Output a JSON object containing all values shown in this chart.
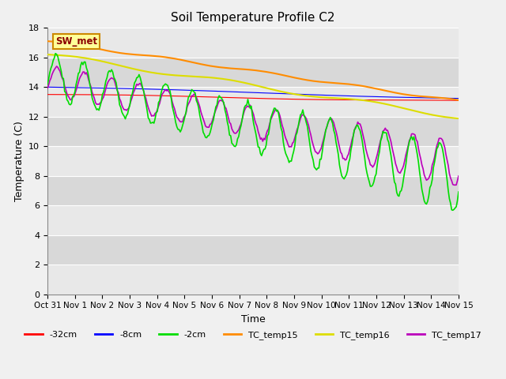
{
  "title": "Soil Temperature Profile C2",
  "xlabel": "Time",
  "ylabel": "Temperature (C)",
  "xlim": [
    0,
    15
  ],
  "ylim": [
    0,
    18
  ],
  "yticks": [
    0,
    2,
    4,
    6,
    8,
    10,
    12,
    14,
    16,
    18
  ],
  "xtick_labels": [
    "Oct 31",
    "Nov 1",
    "Nov 2",
    "Nov 3",
    "Nov 4",
    "Nov 5",
    "Nov 6",
    "Nov 7",
    "Nov 8",
    "Nov 9",
    "Nov 10",
    "Nov 11",
    "Nov 12",
    "Nov 13",
    "Nov 14",
    "Nov 15"
  ],
  "colors": {
    "neg32cm": "#ff0000",
    "neg8cm": "#0000ff",
    "neg2cm": "#00dd00",
    "TC_temp15": "#ff8c00",
    "TC_temp16": "#dddd00",
    "TC_temp17": "#bb00bb"
  },
  "legend_label": "SW_met",
  "bg_color": "#e0e0e0",
  "band_light": "#e8e8e8",
  "band_dark": "#d8d8d8",
  "fig_bg": "#f0f0f0"
}
